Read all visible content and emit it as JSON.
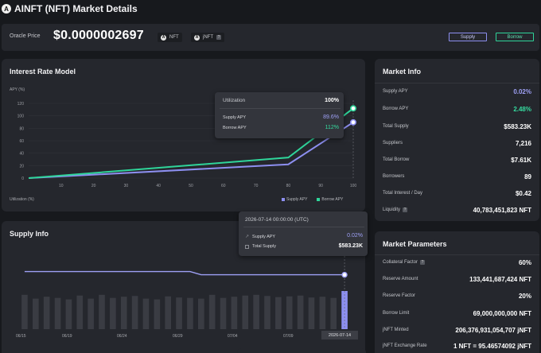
{
  "header": {
    "logo_text": "A",
    "title": "AINFT (NFT) Market Details"
  },
  "oracle": {
    "label": "Oracle Price",
    "price": "$0.0000002697",
    "tokens": [
      {
        "icon": "A",
        "label": "NFT"
      },
      {
        "icon": "A",
        "label": "jNFT"
      }
    ],
    "supply_button": "Supply",
    "borrow_button": "Borrow"
  },
  "colors": {
    "supply": "#8d8ff0",
    "borrow": "#2fd59a",
    "background": "#17191d",
    "card": "#25272d"
  },
  "interest": {
    "title": "Interest Rate Model",
    "ylabel": "APY (%)",
    "xlabel": "Utilization (%)",
    "legend_supply": "Supply APY",
    "legend_borrow": "Borrow APY",
    "tooltip": {
      "utilization_label": "Utilization",
      "utilization_value": "100%",
      "supply_label": "Supply APY",
      "supply_value": "89.6%",
      "borrow_label": "Borrow APY",
      "borrow_value": "112%"
    }
  },
  "supply_info": {
    "title": "Supply Info",
    "x_ticks": [
      "06/15",
      "06/19",
      "06/24",
      "06/29",
      "07/04",
      "07/09",
      "2026-07-14"
    ],
    "tooltip": {
      "date": "2026-07-14 00:00:00  (UTC)",
      "apy_label": "Supply APY",
      "apy_value": "0.02%",
      "total_label": "Total Supply",
      "total_value": "$583.23K"
    }
  },
  "market_info": {
    "title": "Market Info",
    "rows": [
      {
        "label": "Supply APY",
        "value": "0.02%"
      },
      {
        "label": "Borrow APY",
        "value": "2.48%"
      },
      {
        "label": "Total Supply",
        "value": "$583.23K"
      },
      {
        "label": "Suppliers",
        "value": "7,216"
      },
      {
        "label": "Total Borrow",
        "value": "$7.61K"
      },
      {
        "label": "Borrowers",
        "value": "89"
      },
      {
        "label": "Total Interest / Day",
        "value": "$0.42"
      },
      {
        "label": "Liquidity",
        "value": "40,783,451,823 NFT"
      }
    ]
  },
  "market_params": {
    "title": "Market Parameters",
    "rows": [
      {
        "label": "Collateral Factor",
        "value": "60%"
      },
      {
        "label": "Reserve Amount",
        "value": "133,441,687,424 NFT"
      },
      {
        "label": "Reserve Factor",
        "value": "20%"
      },
      {
        "label": "Borrow Limit",
        "value": "69,000,000,000 NFT"
      },
      {
        "label": "jNFT Minted",
        "value": "206,376,931,054,707 jNFT"
      },
      {
        "label": "jNFT Exchange Rate",
        "value": "1 NFT = 95.46574092 jNFT"
      }
    ]
  },
  "chart_data": [
    {
      "type": "line",
      "title": "Interest Rate Model",
      "xlabel": "Utilization (%)",
      "ylabel": "APY (%)",
      "x": [
        0,
        80,
        100
      ],
      "x_ticks": [
        10,
        20,
        30,
        40,
        50,
        60,
        70,
        80,
        90,
        100
      ],
      "y_ticks": [
        0,
        20,
        40,
        60,
        80,
        100,
        120
      ],
      "ylim": [
        0,
        125
      ],
      "xlim": [
        0,
        100
      ],
      "series": [
        {
          "name": "Supply APY",
          "values": [
            0,
            22,
            89.6
          ]
        },
        {
          "name": "Borrow APY",
          "values": [
            0,
            33,
            112
          ]
        }
      ],
      "legend": "bottom-right"
    },
    {
      "type": "bar",
      "title": "Supply Info",
      "bars": 30,
      "bar_heights_relative": [
        0.9,
        0.8,
        0.85,
        0.82,
        0.78,
        0.88,
        0.8,
        0.9,
        0.82,
        0.85,
        0.87,
        0.8,
        0.78,
        0.86,
        0.83,
        0.82,
        0.8,
        0.9,
        0.82,
        0.85,
        0.88,
        0.9,
        0.87,
        0.84,
        0.86,
        0.88,
        0.83,
        0.85,
        0.82,
        1.0
      ],
      "line_relative": [
        0.93,
        0.93,
        0.93,
        0.93,
        0.93,
        0.93,
        0.93,
        0.93,
        0.93,
        0.93,
        0.93,
        0.93,
        0.93,
        0.93,
        0.93,
        0.93,
        0.88,
        0.88,
        0.88,
        0.88,
        0.88,
        0.88,
        0.88,
        0.88,
        0.88,
        0.88,
        0.88,
        0.88,
        0.88,
        0.88
      ]
    }
  ]
}
